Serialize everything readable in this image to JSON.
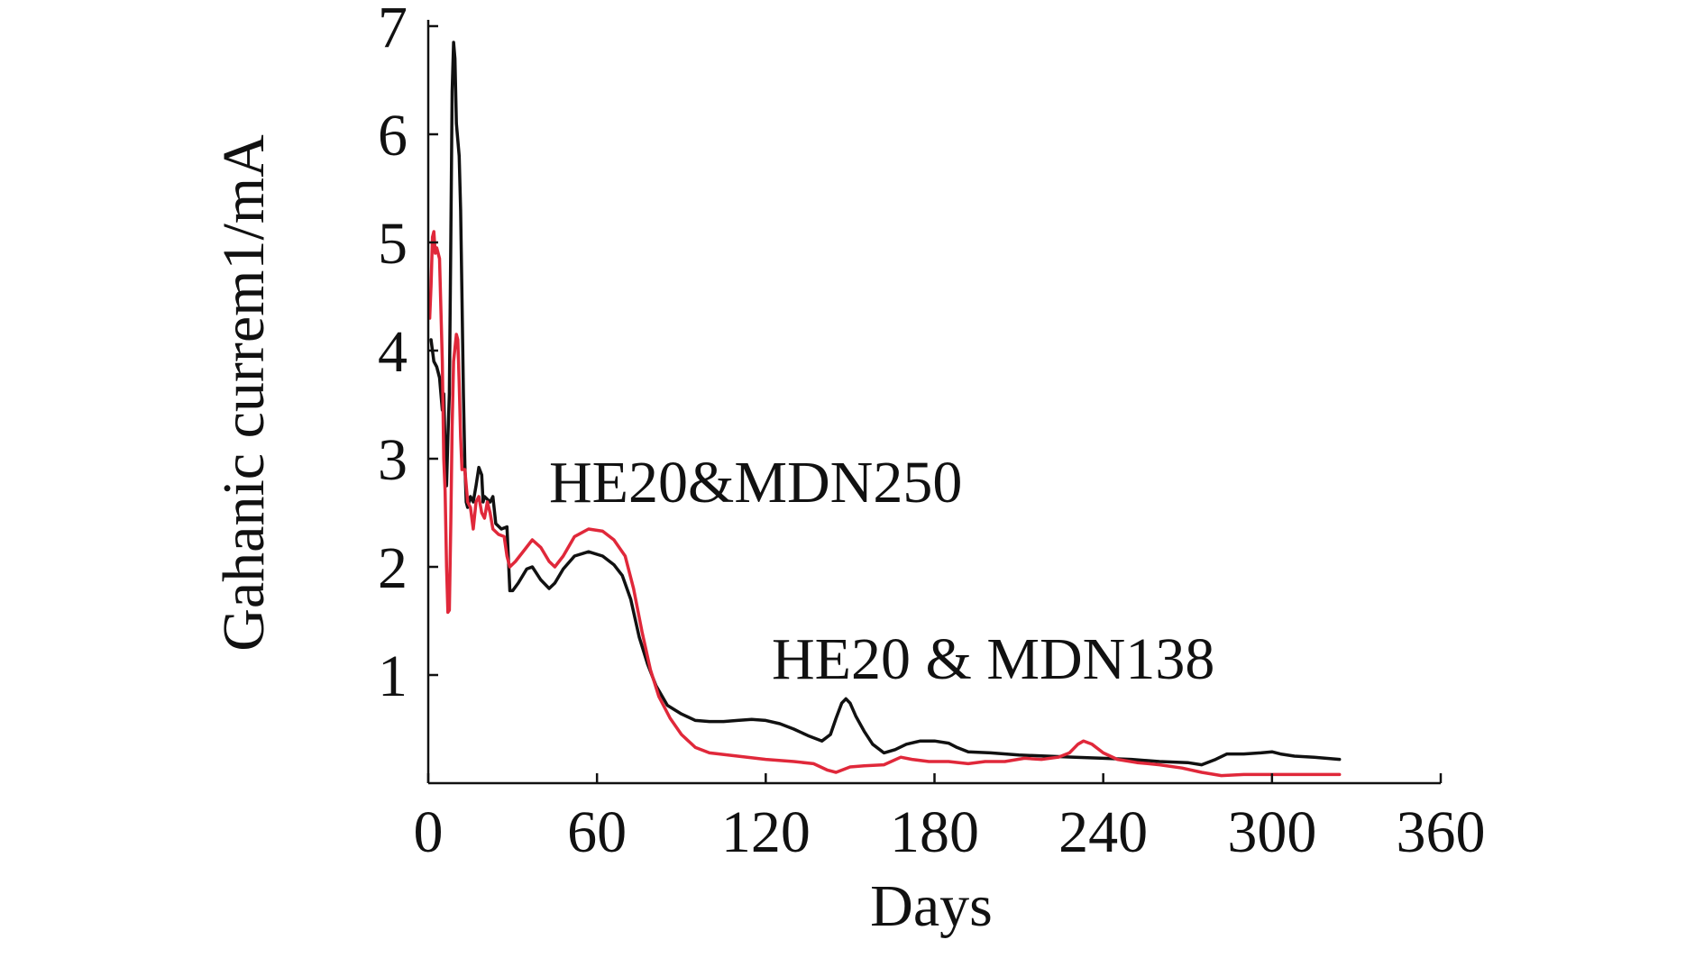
{
  "chart_data": {
    "type": "line",
    "title": "",
    "xlabel": "Days",
    "ylabel": "Gahanic currem1/mA",
    "xlim": [
      0,
      360
    ],
    "ylim": [
      0,
      7
    ],
    "xticks": [
      0,
      60,
      120,
      180,
      240,
      300,
      360
    ],
    "xtick_labels": [
      "0",
      "60",
      "120",
      "180",
      "240",
      "300",
      "360"
    ],
    "yticks": [
      1,
      2,
      3,
      4,
      5,
      6,
      7
    ],
    "ytick_labels": [
      "1",
      "2",
      "3",
      "4",
      "5",
      "6",
      "7"
    ],
    "grid": false,
    "legend": "none",
    "annotations": [
      {
        "text": "HE20&MDN250"
      },
      {
        "text": "HE20 & MDN138"
      }
    ],
    "series": [
      {
        "color": "#111111",
        "x": [
          1,
          2,
          3,
          4,
          5,
          5.5,
          6,
          6.5,
          7,
          7.5,
          8,
          8.5,
          9,
          9.5,
          10,
          11,
          11.5,
          12,
          12.5,
          13,
          13.5,
          14,
          15,
          16,
          17,
          18,
          19,
          19.5,
          20,
          22,
          23,
          24,
          26,
          28,
          29,
          30,
          32,
          35,
          37,
          40,
          43,
          45,
          48,
          52,
          57,
          62,
          66,
          69,
          72,
          75,
          78,
          81,
          85,
          90,
          95,
          100,
          105,
          110,
          115,
          120,
          125,
          130,
          135,
          140,
          143,
          145,
          147,
          148.5,
          150,
          152,
          155,
          158,
          162,
          166,
          170,
          175,
          180,
          185,
          188,
          192,
          200,
          210,
          220,
          230,
          240,
          250,
          260,
          270,
          275,
          280,
          284,
          290,
          296,
          300,
          303,
          308,
          315,
          324
        ],
        "y": [
          4.1,
          3.9,
          3.85,
          3.75,
          3.45,
          3.6,
          3.1,
          2.75,
          3.2,
          3.6,
          5.0,
          6.4,
          6.85,
          6.7,
          6.1,
          5.8,
          5.3,
          4.5,
          3.6,
          2.95,
          2.6,
          2.55,
          2.65,
          2.6,
          2.75,
          2.92,
          2.85,
          2.6,
          2.65,
          2.6,
          2.65,
          2.4,
          2.35,
          2.37,
          1.78,
          1.78,
          1.85,
          1.98,
          2.0,
          1.88,
          1.8,
          1.85,
          1.98,
          2.1,
          2.14,
          2.1,
          2.02,
          1.92,
          1.7,
          1.35,
          1.1,
          0.9,
          0.72,
          0.64,
          0.58,
          0.57,
          0.57,
          0.58,
          0.59,
          0.58,
          0.55,
          0.5,
          0.44,
          0.39,
          0.45,
          0.6,
          0.74,
          0.78,
          0.74,
          0.62,
          0.48,
          0.36,
          0.28,
          0.31,
          0.36,
          0.39,
          0.39,
          0.37,
          0.33,
          0.29,
          0.28,
          0.26,
          0.25,
          0.24,
          0.23,
          0.22,
          0.2,
          0.19,
          0.17,
          0.22,
          0.27,
          0.27,
          0.28,
          0.29,
          0.27,
          0.25,
          0.24,
          0.22
        ]
      },
      {
        "color": "#e0283a",
        "x": [
          0.5,
          1,
          1.5,
          2,
          2.5,
          3,
          4,
          5,
          5.5,
          6,
          6.5,
          7,
          7.5,
          8,
          8.5,
          9,
          10,
          10.5,
          11,
          11.5,
          12,
          13,
          14,
          15,
          16,
          17,
          18,
          19,
          20,
          21,
          22,
          23,
          25,
          27,
          28,
          29,
          31,
          34,
          37,
          40,
          43,
          45,
          48,
          52,
          57,
          62,
          66,
          70,
          73,
          76,
          79,
          82,
          86,
          90,
          95,
          100,
          110,
          120,
          130,
          137,
          142,
          145,
          150,
          155,
          162,
          168,
          172,
          178,
          185,
          192,
          198,
          205,
          212,
          218,
          224,
          228,
          231,
          233,
          236,
          240,
          245,
          252,
          260,
          268,
          275,
          282,
          290,
          300,
          310,
          324
        ],
        "y": [
          4.3,
          4.6,
          5.05,
          5.1,
          4.9,
          4.95,
          4.85,
          3.9,
          3.0,
          2.7,
          2.0,
          1.58,
          1.6,
          2.4,
          3.3,
          3.9,
          4.15,
          4.1,
          3.7,
          3.2,
          2.9,
          2.9,
          2.6,
          2.55,
          2.35,
          2.6,
          2.65,
          2.5,
          2.45,
          2.6,
          2.5,
          2.35,
          2.3,
          2.28,
          2.1,
          2.0,
          2.05,
          2.15,
          2.25,
          2.18,
          2.05,
          2.0,
          2.1,
          2.28,
          2.35,
          2.33,
          2.25,
          2.1,
          1.8,
          1.4,
          1.05,
          0.8,
          0.6,
          0.45,
          0.33,
          0.28,
          0.25,
          0.22,
          0.2,
          0.18,
          0.12,
          0.1,
          0.15,
          0.16,
          0.17,
          0.24,
          0.22,
          0.2,
          0.2,
          0.18,
          0.2,
          0.2,
          0.23,
          0.22,
          0.24,
          0.28,
          0.36,
          0.39,
          0.36,
          0.28,
          0.22,
          0.19,
          0.17,
          0.14,
          0.1,
          0.07,
          0.08,
          0.08,
          0.08,
          0.08
        ]
      }
    ]
  }
}
